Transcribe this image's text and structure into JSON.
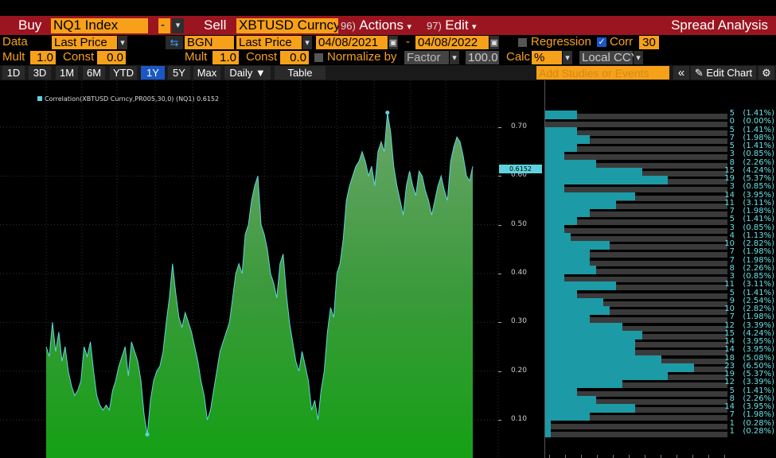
{
  "toolbar1": {
    "buy_label": "Buy",
    "security": "NQ1 Index",
    "dash": "-",
    "sell_label": "Sell",
    "security2": "XBTUSD Curncy",
    "actions_num": "96)",
    "actions_label": "Actions",
    "edit_num": "97)",
    "edit_label": "Edit",
    "title": "Spread Analysis"
  },
  "toolbar2": {
    "data_label": "Data",
    "data_value": "Last Price",
    "bgn": "BGN",
    "data_value2": "Last Price",
    "start_date": "04/08/2021",
    "dash": "-",
    "end_date": "04/08/2022",
    "regression_label": "Regression",
    "corr_label": "Corr",
    "corr_value": "30"
  },
  "toolbar3": {
    "mult_label": "Mult",
    "mult_value": "1.0",
    "const_label": "Const",
    "const_value": "0.0",
    "mult_label2": "Mult",
    "mult_value2": "1.0",
    "const_label2": "Const",
    "const_value2": "0.0",
    "normalize_label": "Normalize by",
    "normalize_value": "Factor",
    "factor_value": "100.0",
    "calc_label": "Calc",
    "calc_value": "%",
    "ccy_value": "Local CCY"
  },
  "toolbar4": {
    "periods": [
      "1D",
      "3D",
      "1M",
      "6M",
      "YTD",
      "1Y",
      "5Y",
      "Max"
    ],
    "selected_period": "1Y",
    "frequency": "Daily ▼",
    "table_label": "Table",
    "studies_placeholder": "Add Studies or Events",
    "collapse_symbol": "«",
    "edit_chart_label": "Edit Chart"
  },
  "colors": {
    "accent_orange": "#f7a11a",
    "header_red": "#9b1520",
    "line_cyan": "#5fd3dd",
    "fill_green": "#24a024",
    "selected_blue": "#1b57c4"
  },
  "chart_data": {
    "type": "area",
    "legend": "Correlation(XBTUSD Curncy,PR005,30,0) (NQ1) 0.6152",
    "current_value_label": "0.6152",
    "current_value": 0.6152,
    "y_ticks": [
      "0.70",
      "0.60",
      "0.50",
      "0.40",
      "0.30",
      "0.20",
      "0.10"
    ],
    "ylim": [
      0.0,
      0.76
    ],
    "y": [
      0.25,
      0.23,
      0.3,
      0.24,
      0.28,
      0.22,
      0.25,
      0.2,
      0.17,
      0.15,
      0.16,
      0.18,
      0.25,
      0.23,
      0.26,
      0.2,
      0.15,
      0.13,
      0.12,
      0.13,
      0.12,
      0.16,
      0.18,
      0.21,
      0.23,
      0.25,
      0.19,
      0.26,
      0.24,
      0.22,
      0.18,
      0.11,
      0.07,
      0.14,
      0.18,
      0.2,
      0.21,
      0.24,
      0.3,
      0.35,
      0.42,
      0.36,
      0.31,
      0.29,
      0.32,
      0.3,
      0.28,
      0.25,
      0.22,
      0.18,
      0.15,
      0.1,
      0.12,
      0.16,
      0.2,
      0.24,
      0.26,
      0.28,
      0.3,
      0.35,
      0.4,
      0.42,
      0.4,
      0.48,
      0.5,
      0.55,
      0.58,
      0.6,
      0.5,
      0.48,
      0.45,
      0.4,
      0.38,
      0.35,
      0.42,
      0.44,
      0.36,
      0.3,
      0.26,
      0.22,
      0.2,
      0.24,
      0.21,
      0.18,
      0.12,
      0.14,
      0.1,
      0.16,
      0.2,
      0.28,
      0.33,
      0.31,
      0.4,
      0.42,
      0.47,
      0.55,
      0.58,
      0.6,
      0.62,
      0.63,
      0.65,
      0.63,
      0.6,
      0.62,
      0.58,
      0.65,
      0.67,
      0.65,
      0.73,
      0.69,
      0.62,
      0.58,
      0.55,
      0.52,
      0.58,
      0.61,
      0.58,
      0.56,
      0.61,
      0.6,
      0.57,
      0.55,
      0.52,
      0.55,
      0.58,
      0.6,
      0.57,
      0.55,
      0.63,
      0.66,
      0.68,
      0.67,
      0.64,
      0.6,
      0.59,
      0.62
    ],
    "histogram": [
      {
        "label": "5",
        "pct": "(1.41%)",
        "count": 5
      },
      {
        "label": "0",
        "pct": "(0.00%)",
        "count": 0
      },
      {
        "label": "5",
        "pct": "(1.41%)",
        "count": 5
      },
      {
        "label": "7",
        "pct": "(1.98%)",
        "count": 7
      },
      {
        "label": "5",
        "pct": "(1.41%)",
        "count": 5
      },
      {
        "label": "3",
        "pct": "(0.85%)",
        "count": 3
      },
      {
        "label": "8",
        "pct": "(2.26%)",
        "count": 8
      },
      {
        "label": "15",
        "pct": "(4.24%)",
        "count": 15
      },
      {
        "label": "19",
        "pct": "(5.37%)",
        "count": 19
      },
      {
        "label": "3",
        "pct": "(0.85%)",
        "count": 3
      },
      {
        "label": "14",
        "pct": "(3.95%)",
        "count": 14
      },
      {
        "label": "11",
        "pct": "(3.11%)",
        "count": 11
      },
      {
        "label": "7",
        "pct": "(1.98%)",
        "count": 7
      },
      {
        "label": "5",
        "pct": "(1.41%)",
        "count": 5
      },
      {
        "label": "3",
        "pct": "(0.85%)",
        "count": 3
      },
      {
        "label": "4",
        "pct": "(1.13%)",
        "count": 4
      },
      {
        "label": "10",
        "pct": "(2.82%)",
        "count": 10
      },
      {
        "label": "7",
        "pct": "(1.98%)",
        "count": 7
      },
      {
        "label": "7",
        "pct": "(1.98%)",
        "count": 7
      },
      {
        "label": "8",
        "pct": "(2.26%)",
        "count": 8
      },
      {
        "label": "3",
        "pct": "(0.85%)",
        "count": 3
      },
      {
        "label": "11",
        "pct": "(3.11%)",
        "count": 11
      },
      {
        "label": "5",
        "pct": "(1.41%)",
        "count": 5
      },
      {
        "label": "9",
        "pct": "(2.54%)",
        "count": 9
      },
      {
        "label": "10",
        "pct": "(2.82%)",
        "count": 10
      },
      {
        "label": "7",
        "pct": "(1.98%)",
        "count": 7
      },
      {
        "label": "12",
        "pct": "(3.39%)",
        "count": 12
      },
      {
        "label": "15",
        "pct": "(4.24%)",
        "count": 15
      },
      {
        "label": "14",
        "pct": "(3.95%)",
        "count": 14
      },
      {
        "label": "14",
        "pct": "(3.95%)",
        "count": 14
      },
      {
        "label": "18",
        "pct": "(5.08%)",
        "count": 18
      },
      {
        "label": "23",
        "pct": "(6.50%)",
        "count": 23
      },
      {
        "label": "19",
        "pct": "(5.37%)",
        "count": 19
      },
      {
        "label": "12",
        "pct": "(3.39%)",
        "count": 12
      },
      {
        "label": "5",
        "pct": "(1.41%)",
        "count": 5
      },
      {
        "label": "8",
        "pct": "(2.26%)",
        "count": 8
      },
      {
        "label": "14",
        "pct": "(3.95%)",
        "count": 14
      },
      {
        "label": "7",
        "pct": "(1.98%)",
        "count": 7
      },
      {
        "label": "1",
        "pct": "(0.28%)",
        "count": 1
      },
      {
        "label": "1",
        "pct": "(0.28%)",
        "count": 1
      }
    ]
  }
}
